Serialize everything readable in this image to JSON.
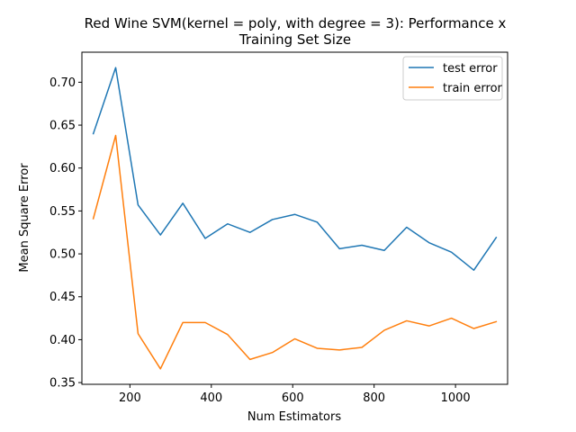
{
  "chart_data": {
    "type": "line",
    "title_lines": [
      "Red Wine SVM(kernel = poly, with degree = 3): Performance x",
      "Training Set Size"
    ],
    "xlabel": "Num Estimators",
    "ylabel": "Mean Square Error",
    "xlim": [
      82,
      1128
    ],
    "ylim": [
      0.348,
      0.735
    ],
    "xticks": [
      200,
      400,
      600,
      800,
      1000
    ],
    "yticks": [
      0.35,
      0.4,
      0.45,
      0.5,
      0.55,
      0.6,
      0.65,
      0.7
    ],
    "ytick_labels": [
      "0.35",
      "0.40",
      "0.45",
      "0.50",
      "0.55",
      "0.60",
      "0.65",
      "0.70"
    ],
    "grid": false,
    "legend_position": "top-right",
    "x": [
      110,
      165,
      220,
      275,
      330,
      385,
      440,
      495,
      550,
      605,
      660,
      715,
      770,
      825,
      880,
      935,
      990,
      1045,
      1100
    ],
    "series": [
      {
        "name": "test error",
        "color": "#1f77b4",
        "values": [
          0.64,
          0.717,
          0.557,
          0.522,
          0.559,
          0.518,
          0.535,
          0.525,
          0.54,
          0.546,
          0.537,
          0.506,
          0.51,
          0.504,
          0.531,
          0.513,
          0.502,
          0.481,
          0.519
        ]
      },
      {
        "name": "train error",
        "color": "#ff7f0e",
        "values": [
          0.541,
          0.638,
          0.407,
          0.366,
          0.42,
          0.42,
          0.406,
          0.377,
          0.385,
          0.401,
          0.39,
          0.388,
          0.391,
          0.411,
          0.422,
          0.416,
          0.425,
          0.413,
          0.421
        ]
      }
    ]
  }
}
